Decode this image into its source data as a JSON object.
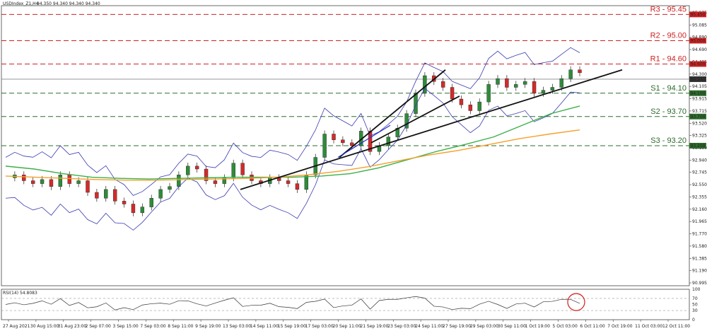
{
  "header": {
    "symbol": "USDIndex_Z1,H4",
    "ohlc": "94.350 94.340 94.340 94.340"
  },
  "chart_data": {
    "type": "candlestick",
    "ylim": [
      90.8,
      95.6
    ],
    "y_ticks": [
      "95.275",
      "95.085",
      "94.890",
      "94.690",
      "94.495",
      "94.300",
      "94.105",
      "93.915",
      "93.715",
      "93.520",
      "93.325",
      "93.130",
      "92.940",
      "92.745",
      "92.550",
      "92.355",
      "92.160",
      "91.965",
      "91.770",
      "91.580",
      "91.385",
      "91.190",
      "90.995"
    ],
    "x_labels": [
      "27 Aug 2021",
      "30 Aug 15:00",
      "31 Aug 23:00",
      "2 Sep 07:00",
      "3 Sep 15:00",
      "7 Sep 03:00",
      "8 Sep 11:00",
      "9 Sep 19:00",
      "13 Sep 03:00",
      "14 Sep 11:00",
      "15 Sep 19:00",
      "17 Sep 03:00",
      "20 Sep 11:00",
      "21 Sep 19:00",
      "23 Sep 03:00",
      "24 Sep 11:00",
      "27 Sep 19:00",
      "29 Sep 03:00",
      "30 Sep 11:00",
      "1 Oct 19:00",
      "5 Oct 03:00",
      "6 Oct 11:00",
      "7 Oct 19:00",
      "11 Oct 03:00",
      "12 Oct 11:00"
    ],
    "levels": [
      {
        "label": "R3 - 95.45",
        "value": 95.45,
        "tag": "95.450",
        "color": "#cc2222"
      },
      {
        "label": "R2 - 95.00",
        "value": 95.0,
        "tag": "95.000",
        "color": "#cc2222"
      },
      {
        "label": "R1 - 94.60",
        "value": 94.6,
        "tag": "94.600",
        "color": "#cc2222"
      },
      {
        "label": "S1 - 94.10",
        "value": 94.1,
        "tag": "94.100",
        "color": "#2d6b2d"
      },
      {
        "label": "S2 - 93.70",
        "value": 93.7,
        "tag": "93.700",
        "color": "#2d6b2d"
      },
      {
        "label": "S3 - 93.20",
        "value": 93.2,
        "tag": "93.200",
        "color": "#2d6b2d"
      }
    ],
    "current_price": {
      "value": 94.34,
      "tag": "94.340"
    },
    "price_path": [
      92.65,
      92.7,
      92.6,
      92.55,
      92.62,
      92.5,
      92.7,
      92.55,
      92.6,
      92.4,
      92.3,
      92.45,
      92.25,
      92.2,
      92.05,
      92.15,
      92.3,
      92.45,
      92.5,
      92.7,
      92.85,
      92.8,
      92.6,
      92.55,
      92.65,
      92.9,
      92.7,
      92.6,
      92.55,
      92.65,
      92.6,
      92.55,
      92.45,
      92.7,
      93.0,
      93.4,
      93.3,
      93.25,
      93.2,
      93.45,
      93.1,
      93.2,
      93.35,
      93.5,
      93.75,
      94.1,
      94.4,
      94.3,
      94.2,
      94.0,
      93.9,
      93.8,
      93.95,
      94.25,
      94.35,
      94.2,
      94.25,
      94.3,
      94.1,
      94.15,
      94.2,
      94.35,
      94.5,
      94.45
    ],
    "ma_green": [
      92.85,
      92.8,
      92.72,
      92.66,
      92.64,
      92.63,
      92.64,
      92.65,
      92.66,
      92.66,
      92.66,
      92.68,
      92.72,
      92.82,
      92.96,
      93.1,
      93.22,
      93.35,
      93.55,
      93.75,
      93.88
    ],
    "ma_orange": [
      92.68,
      92.66,
      92.64,
      92.62,
      92.61,
      92.61,
      92.62,
      92.63,
      92.64,
      92.66,
      92.7,
      92.76,
      92.84,
      92.94,
      93.04,
      93.12,
      93.22,
      93.32,
      93.4,
      93.47
    ],
    "rsi": {
      "label": "RSI(14) 54.8083",
      "ticks": [
        "100",
        "70",
        "50",
        "30",
        "0"
      ],
      "levels": [
        70,
        30
      ]
    }
  }
}
